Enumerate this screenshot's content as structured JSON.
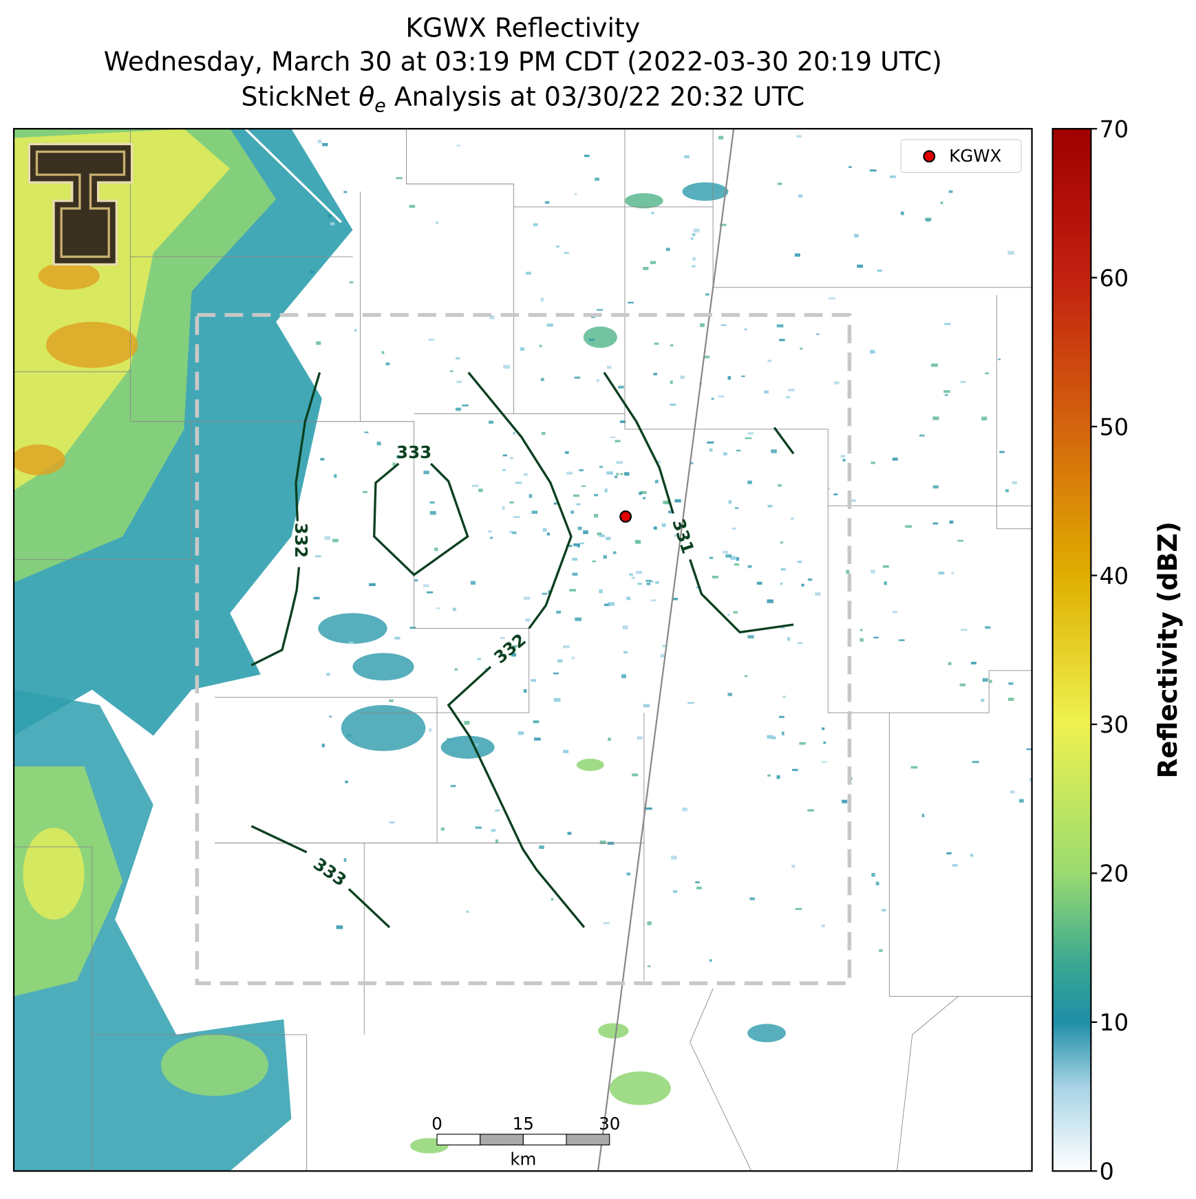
{
  "title": {
    "line1": "KGWX Reflectivity",
    "line2": "Wednesday, March 30 at 03:19 PM CDT (2022-03-30 20:19 UTC)",
    "line3": {
      "prefix": "StickNet ",
      "symbol": "θ",
      "subscript": "e",
      "suffix": " Analysis at 03/30/22 20:32 UTC"
    }
  },
  "legend": {
    "label": "KGWX"
  },
  "colorbar": {
    "label": "Reflectivity (dBZ)",
    "lim": [
      0,
      70
    ],
    "ticks": [
      0,
      10,
      20,
      30,
      40,
      50,
      60,
      70
    ]
  },
  "contours": [
    {
      "label": "333"
    },
    {
      "label": "332"
    },
    {
      "label": "332"
    },
    {
      "label": "331"
    },
    {
      "label": "333"
    }
  ],
  "scale_bar": {
    "ticks": [
      0,
      15,
      30
    ],
    "unit": "km"
  }
}
